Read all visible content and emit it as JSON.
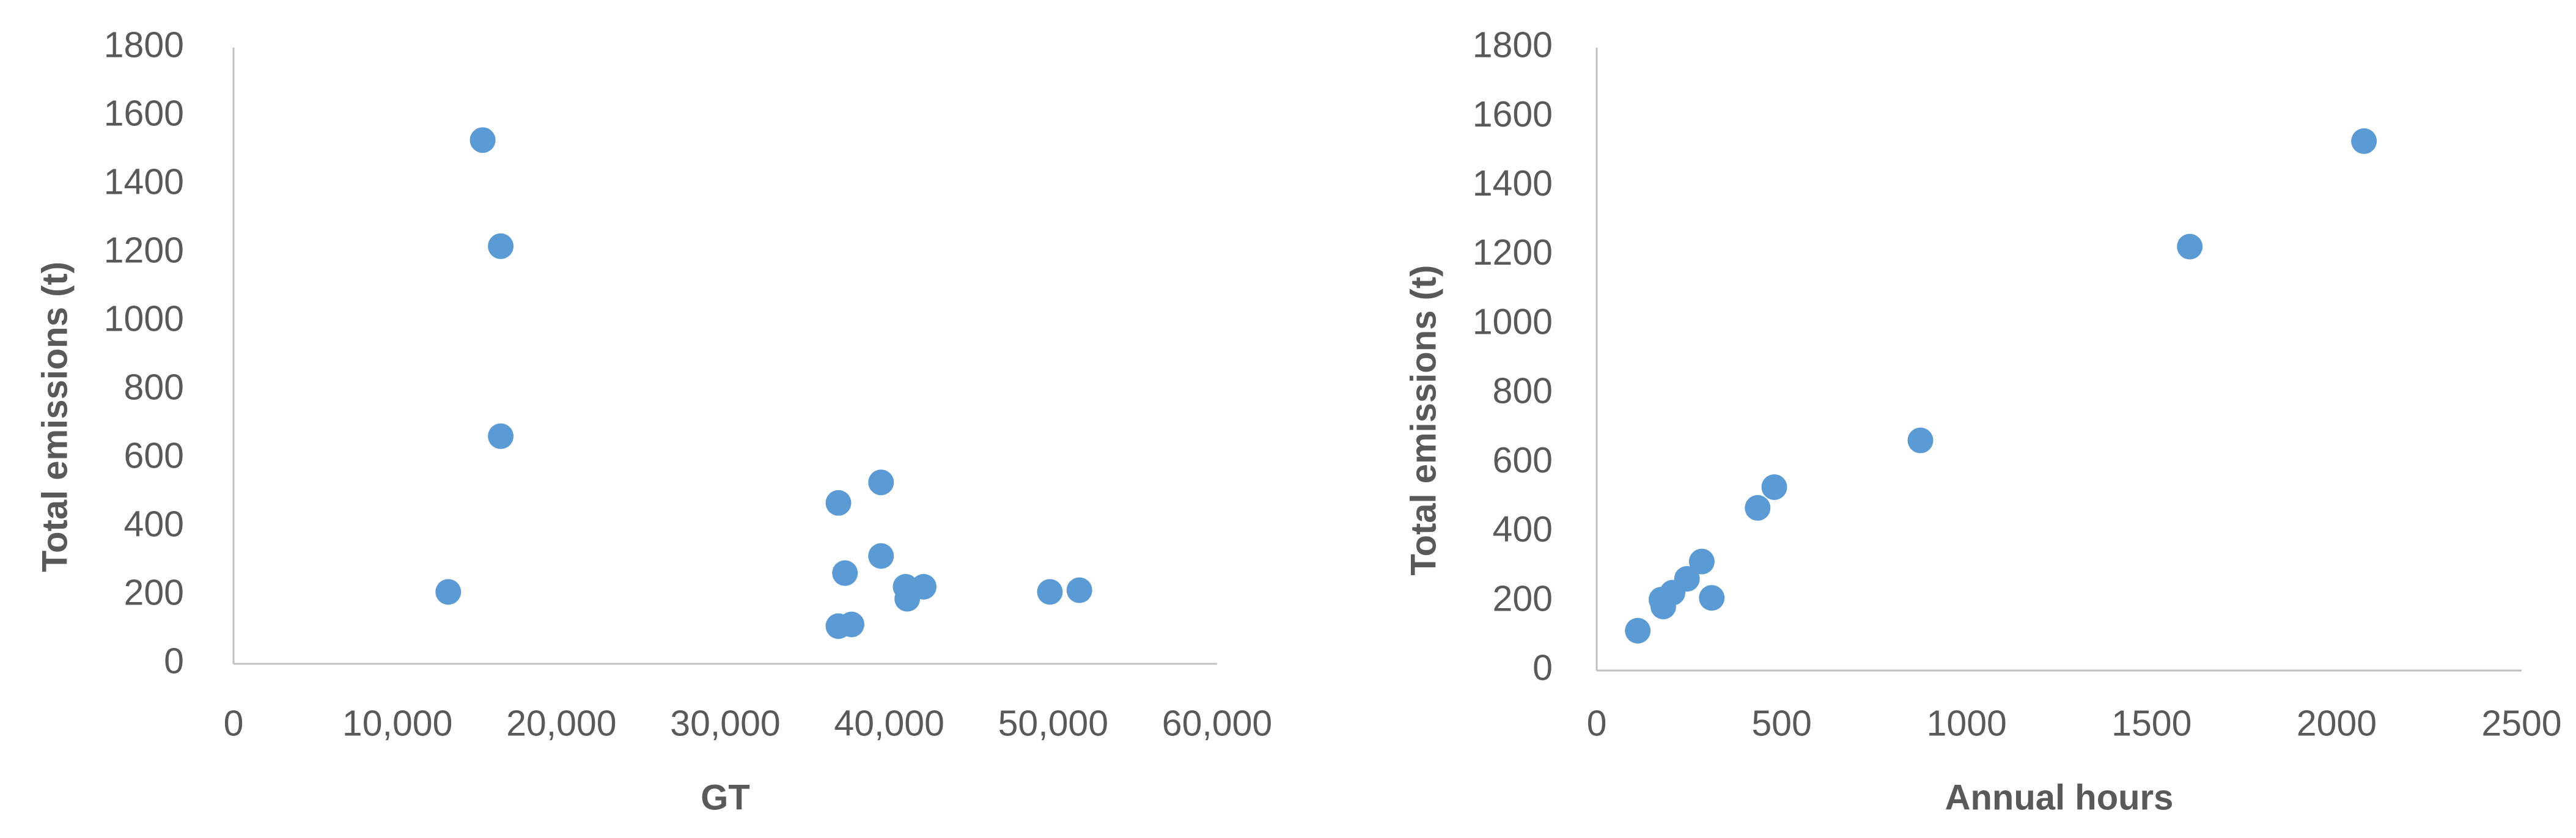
{
  "chart_data": [
    {
      "type": "scatter",
      "x_label": "GT",
      "y_label": "Total emissions (t)",
      "series": [
        {
          "color": "#5b9bd5",
          "x": [
            13100,
            15200,
            16300,
            16300,
            36900,
            39500,
            37300,
            39500,
            36900,
            37700,
            41000,
            41100,
            42100,
            49800,
            51600
          ],
          "values": [
            210,
            1530,
            1220,
            665,
            470,
            530,
            265,
            315,
            110,
            115,
            225,
            190,
            225,
            210,
            215
          ]
        }
      ],
      "xlim": [
        0,
        60000
      ],
      "xticks": [
        0,
        {
          "value": 10000,
          "label": "10,000"
        },
        {
          "value": 20000,
          "label": "20,000"
        },
        {
          "value": 30000,
          "label": "30,000"
        },
        {
          "value": 40000,
          "label": "40,000"
        },
        {
          "value": 50000,
          "label": "50,000"
        },
        {
          "value": 60000,
          "label": "60,000"
        }
      ],
      "ylim": [
        0,
        1800
      ],
      "yticks": [
        0,
        200,
        400,
        600,
        800,
        1000,
        1200,
        1400,
        1600,
        1800
      ],
      "grid": false
    },
    {
      "type": "scatter",
      "x_label": "Annual hours",
      "y_label": "Total emissions (t)",
      "series": [
        {
          "color": "#5b9bd5",
          "x": [
            111,
            175,
            180,
            205,
            244,
            284,
            311,
            435,
            480,
            875,
            1603,
            2074
          ],
          "values": [
            115,
            205,
            185,
            225,
            265,
            315,
            210,
            470,
            530,
            665,
            1225,
            1530
          ]
        }
      ],
      "xlim": [
        0,
        2500
      ],
      "xticks": [
        0,
        500,
        1000,
        1500,
        2000,
        2500
      ],
      "ylim": [
        0,
        1800
      ],
      "yticks": [
        0,
        200,
        400,
        600,
        800,
        1000,
        1200,
        1400,
        1600,
        1800
      ],
      "grid": false
    }
  ]
}
